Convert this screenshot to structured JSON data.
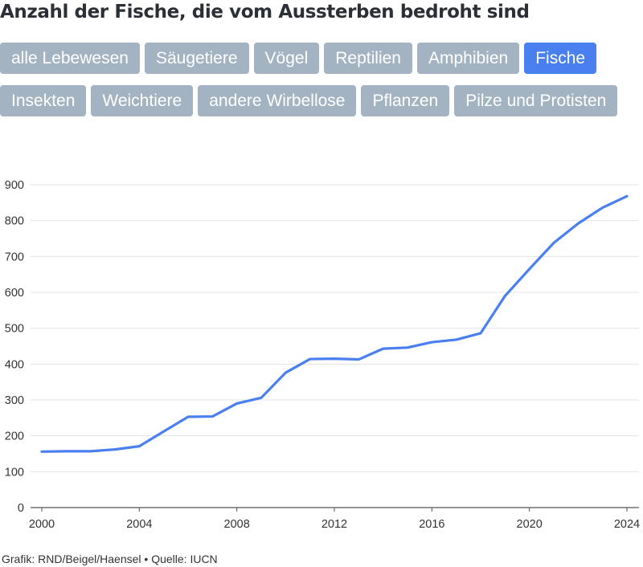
{
  "title": "Anzahl der Fische, die vom Aussterben bedroht sind",
  "filters": [
    {
      "label": "alle Lebewesen",
      "active": false
    },
    {
      "label": "Säugetiere",
      "active": false
    },
    {
      "label": "Vögel",
      "active": false
    },
    {
      "label": "Reptilien",
      "active": false
    },
    {
      "label": "Amphibien",
      "active": false
    },
    {
      "label": "Fische",
      "active": true
    },
    {
      "label": "Insekten",
      "active": false
    },
    {
      "label": "Weichtiere",
      "active": false
    },
    {
      "label": "andere Wirbellose",
      "active": false
    },
    {
      "label": "Pflanzen",
      "active": false
    },
    {
      "label": "Pilze und Protisten",
      "active": false
    }
  ],
  "colors": {
    "line": "#4a7ff0",
    "active_button": "#4a7ff0",
    "button": "#a3b3c2",
    "grid": "#e3e3e3"
  },
  "chart_data": {
    "type": "line",
    "title": "Anzahl der Fische, die vom Aussterben bedroht sind",
    "xlabel": "",
    "ylabel": "",
    "x": [
      2000,
      2001,
      2002,
      2003,
      2004,
      2005,
      2006,
      2007,
      2008,
      2009,
      2010,
      2011,
      2012,
      2013,
      2014,
      2015,
      2016,
      2017,
      2018,
      2019,
      2020,
      2021,
      2022,
      2023,
      2024
    ],
    "series": [
      {
        "values": [
          156,
          157,
          157,
          162,
          171,
          212,
          253,
          254,
          290,
          306,
          376,
          414,
          415,
          413,
          443,
          446,
          461,
          468,
          486,
          590,
          665,
          738,
          792,
          836,
          868
        ]
      }
    ],
    "xlim": [
      2000,
      2024
    ],
    "ylim": [
      0,
      900
    ],
    "xticks": [
      "2000",
      "2004",
      "2008",
      "2012",
      "2016",
      "2020",
      "2024"
    ],
    "yticks": [
      "0",
      "100",
      "200",
      "300",
      "400",
      "500",
      "600",
      "700",
      "800",
      "900"
    ],
    "grid": true,
    "legend": "none"
  },
  "footer": "Grafik: RND/Beigel/Haensel • Quelle: IUCN"
}
